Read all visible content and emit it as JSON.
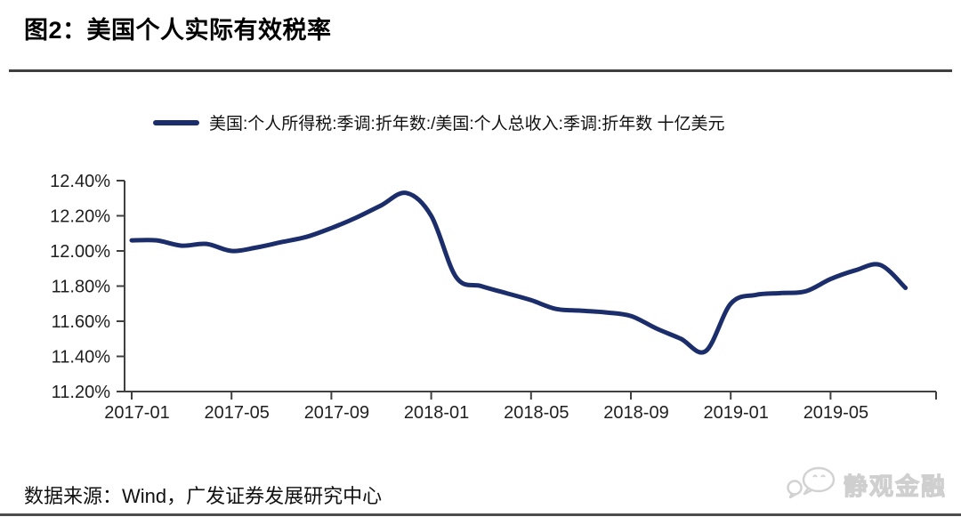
{
  "figure": {
    "title": "图2：美国个人实际有效税率",
    "source": "数据来源：Wind，广发证券发展研究中心",
    "watermark": "静观金融"
  },
  "chart_data": {
    "type": "line",
    "title": "图2：美国个人实际有效税率",
    "legend": [
      "美国:个人所得税:季调:折年数:/美国:个人总收入:季调:折年数 十亿美元"
    ],
    "legend_position": "top",
    "grid": false,
    "line_color": "#1b2e6b",
    "axis_color": "#404040",
    "ylim": [
      11.2,
      12.4
    ],
    "y_tick_labels": [
      "12.40%",
      "12.20%",
      "12.00%",
      "11.80%",
      "11.60%",
      "11.40%",
      "11.20%"
    ],
    "x_tick_labels": [
      "2017-01",
      "2017-05",
      "2017-09",
      "2018-01",
      "2018-05",
      "2018-09",
      "2019-01",
      "2019-05"
    ],
    "x": [
      "2017-01",
      "2017-02",
      "2017-03",
      "2017-04",
      "2017-05",
      "2017-06",
      "2017-07",
      "2017-08",
      "2017-09",
      "2017-10",
      "2017-11",
      "2017-12",
      "2018-01",
      "2018-02",
      "2018-03",
      "2018-04",
      "2018-05",
      "2018-06",
      "2018-07",
      "2018-08",
      "2018-09",
      "2018-10",
      "2018-11",
      "2018-12",
      "2019-01",
      "2019-02",
      "2019-03",
      "2019-04",
      "2019-05",
      "2019-06",
      "2019-07",
      "2019-08"
    ],
    "values": [
      12.06,
      12.06,
      12.03,
      12.04,
      12.0,
      12.02,
      12.05,
      12.08,
      12.13,
      12.19,
      12.26,
      12.33,
      12.2,
      11.85,
      11.8,
      11.76,
      11.72,
      11.67,
      11.66,
      11.65,
      11.63,
      11.56,
      11.5,
      11.43,
      11.7,
      11.75,
      11.76,
      11.77,
      11.84,
      11.89,
      11.92,
      11.79
    ],
    "ylabel": "",
    "xlabel": ""
  }
}
